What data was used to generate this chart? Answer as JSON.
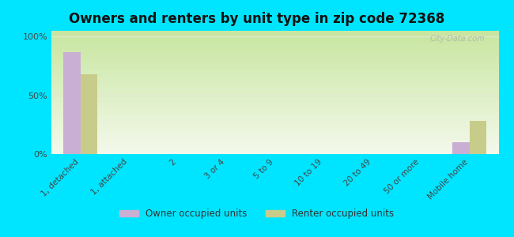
{
  "title": "Owners and renters by unit type in zip code 72368",
  "categories": [
    "1, detached",
    "1, attached",
    "2",
    "3 or 4",
    "5 to 9",
    "10 to 19",
    "20 to 49",
    "50 or more",
    "Mobile home"
  ],
  "owner_values": [
    87,
    0,
    0,
    0,
    0,
    0,
    0,
    0,
    10
  ],
  "renter_values": [
    68,
    0,
    0,
    0,
    0,
    0,
    0,
    0,
    28
  ],
  "owner_color": "#c9afd4",
  "renter_color": "#c8cc8a",
  "figure_bg": "#00e5ff",
  "grad_color_top": "#c8e6a0",
  "grad_color_bottom": "#f4f9ec",
  "title_fontsize": 12,
  "yticks": [
    0,
    50,
    100
  ],
  "ylabels": [
    "0%",
    "50%",
    "100%"
  ],
  "ylim_max": 105,
  "bar_width": 0.35,
  "legend_labels": [
    "Owner occupied units",
    "Renter occupied units"
  ],
  "watermark": "City-Data.com",
  "grid_color": "#e0e8d0"
}
